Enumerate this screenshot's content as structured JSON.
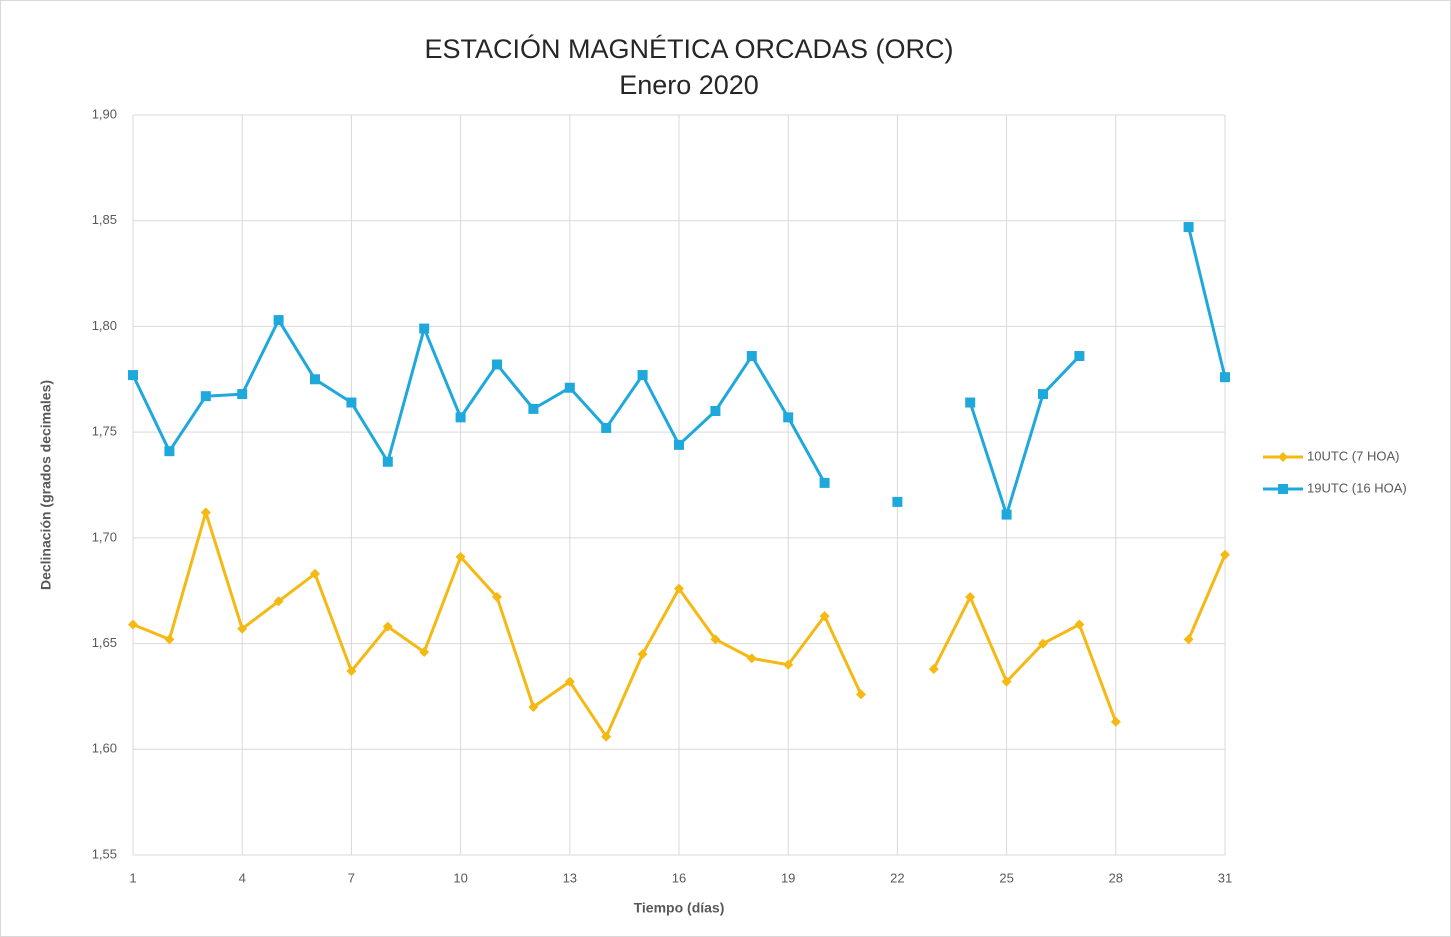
{
  "chart_data": {
    "type": "line",
    "title": "ESTACIÓN MAGNÉTICA ORCADAS (ORC)",
    "subtitle": "Enero 2020",
    "x_label": "Tiempo (días)",
    "y_label": "Declinación (grados decimales)",
    "x": [
      1,
      2,
      3,
      4,
      5,
      6,
      7,
      8,
      9,
      10,
      11,
      12,
      13,
      14,
      15,
      16,
      17,
      18,
      19,
      20,
      21,
      22,
      23,
      24,
      25,
      26,
      27,
      28,
      29,
      30,
      31
    ],
    "xlim": [
      1,
      31
    ],
    "xticks": [
      1,
      4,
      7,
      10,
      13,
      16,
      19,
      22,
      25,
      28,
      31
    ],
    "ylim": [
      1.55,
      1.9
    ],
    "yticks": [
      {
        "value": 1.55,
        "label": "1,55"
      },
      {
        "value": 1.6,
        "label": "1,60"
      },
      {
        "value": 1.65,
        "label": "1,65"
      },
      {
        "value": 1.7,
        "label": "1,70"
      },
      {
        "value": 1.75,
        "label": "1,75"
      },
      {
        "value": 1.8,
        "label": "1,80"
      },
      {
        "value": 1.85,
        "label": "1,85"
      },
      {
        "value": 1.9,
        "label": "1,90"
      }
    ],
    "grid": true,
    "legend": "right",
    "series": [
      {
        "name": "10UTC (7 HOA)",
        "color": "#f5b914",
        "marker": "diamond",
        "values": [
          1.659,
          1.652,
          1.712,
          1.657,
          1.67,
          1.683,
          1.637,
          1.658,
          1.646,
          1.691,
          1.672,
          1.62,
          1.632,
          1.606,
          1.645,
          1.676,
          1.652,
          1.643,
          1.64,
          1.663,
          1.626,
          null,
          1.638,
          1.672,
          1.632,
          1.65,
          1.659,
          1.613,
          null,
          1.652,
          1.692
        ]
      },
      {
        "name": "19UTC (16 HOA)",
        "color": "#1fa8dc",
        "marker": "square",
        "values": [
          1.777,
          1.741,
          1.767,
          1.768,
          1.803,
          1.775,
          1.764,
          1.736,
          1.799,
          1.757,
          1.782,
          1.761,
          1.771,
          1.752,
          1.777,
          1.744,
          1.76,
          1.786,
          1.757,
          1.726,
          null,
          1.717,
          null,
          1.764,
          1.711,
          1.768,
          1.786,
          null,
          null,
          1.847,
          1.776
        ]
      }
    ]
  }
}
